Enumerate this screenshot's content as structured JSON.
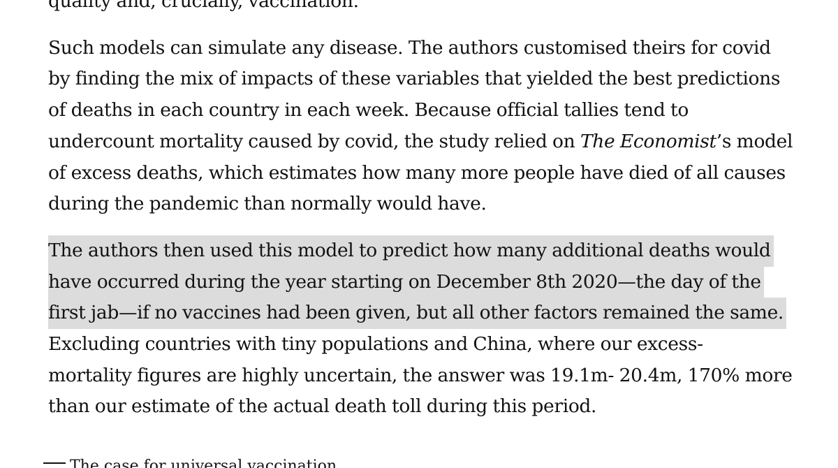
{
  "article": {
    "p0": {
      "l1": "quality and, crucially, vaccination."
    },
    "p1": {
      "l1": "Such models can simulate any disease. The authors customised theirs for covid",
      "l2": "by finding the mix of impacts of these variables that yielded the best predictions",
      "l3": "of deaths in each country in each week. Because official tallies tend to",
      "l4_a": "undercount mortality caused by covid, the study relied on ",
      "l4_italic": "The Economist",
      "l4_b": "’s model",
      "l5": "of excess deaths, which estimates how many more people have died of all causes",
      "l6": "during the pandemic than normally would have."
    },
    "p2": {
      "l1": "The authors then used this model to predict how many additional deaths would",
      "l2": "have occurred during the year starting on December 8th 2020—the day of the",
      "l3": "first jab—if no vaccines had been given, but all other factors remained the same.",
      "l4": "Excluding countries with tiny populations and China, where our excess-",
      "l5": "mortality figures are highly uncertain, the answer was 19.1m- 20.4m, 170% more",
      "l6": "than our estimate of the actual death toll during this period."
    }
  },
  "footer": {
    "text": "The case for universal vaccination"
  }
}
